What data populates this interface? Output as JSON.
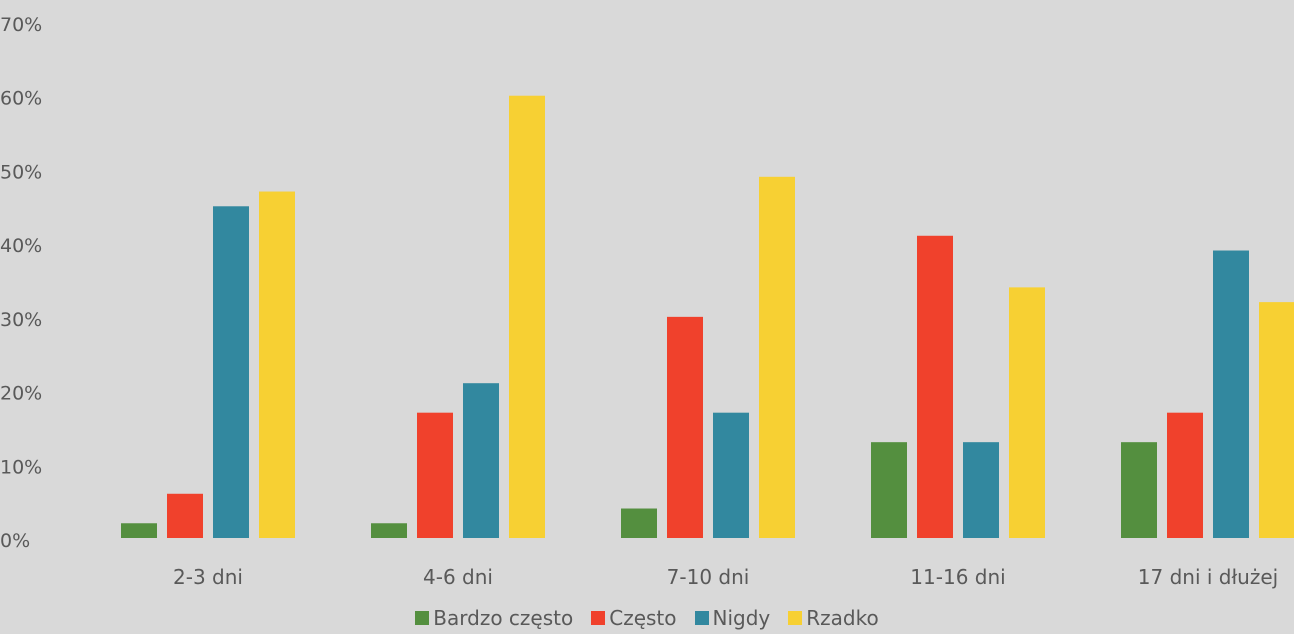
{
  "chart_data": {
    "type": "bar",
    "categories": [
      "2-3 dni",
      "4-6 dni",
      "7-10 dni",
      "11-16 dni",
      "17 dni i dłużej"
    ],
    "series": [
      {
        "name": "Bardzo często",
        "color": "#548f3f",
        "values": [
          2,
          2,
          4,
          13,
          13
        ]
      },
      {
        "name": "Często",
        "color": "#f0412c",
        "values": [
          6,
          17,
          30,
          41,
          17
        ]
      },
      {
        "name": "Nigdy",
        "color": "#32889f",
        "values": [
          45,
          21,
          17,
          13,
          39
        ]
      },
      {
        "name": "Rzadko",
        "color": "#f7d033",
        "values": [
          47,
          60,
          49,
          34,
          32
        ]
      }
    ],
    "yticks": [
      "0%",
      "10%",
      "20%",
      "30%",
      "40%",
      "50%",
      "60%",
      "70%"
    ],
    "ylim": [
      0,
      70
    ],
    "title": "",
    "xlabel": "",
    "ylabel": "",
    "grid": false,
    "legend_position": "bottom"
  }
}
